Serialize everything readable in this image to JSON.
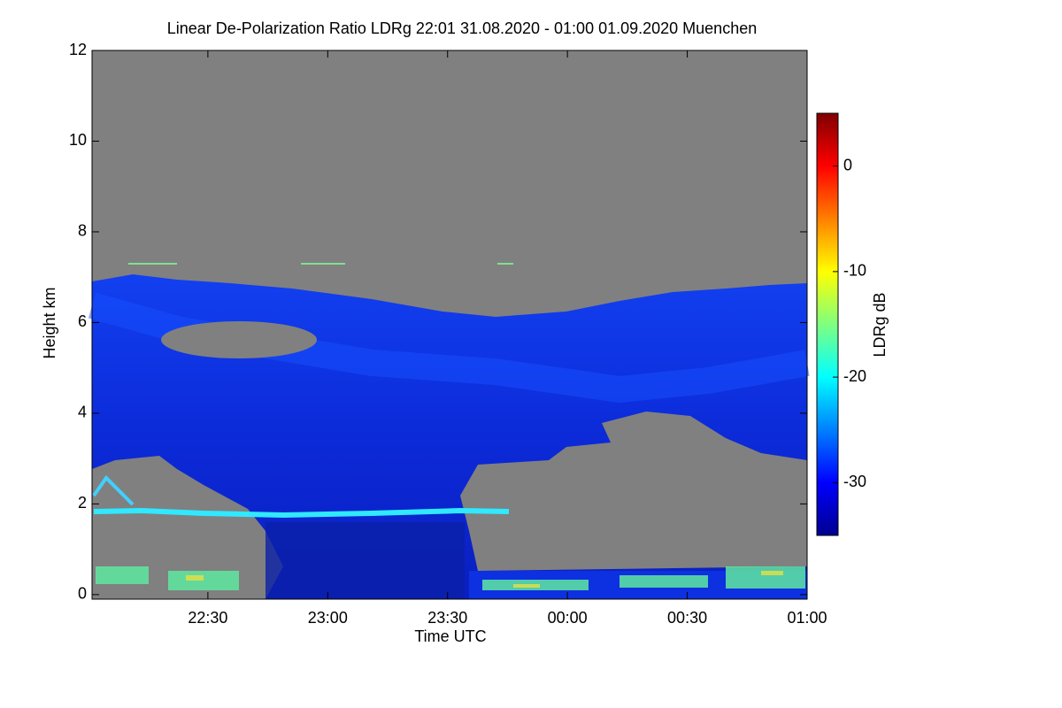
{
  "chart_data": {
    "type": "heatmap",
    "title": "Linear De-Polarization Ratio LDRg   22:01 31.08.2020 - 01:00 01.09.2020 Muenchen",
    "x_label": "Time UTC",
    "y_label": "Height km",
    "xlim": [
      22.0167,
      25.0
    ],
    "xticks": [
      {
        "value": 22.5,
        "label": "22:30"
      },
      {
        "value": 23,
        "label": "23:00"
      },
      {
        "value": 23.5,
        "label": "23:30"
      },
      {
        "value": 24,
        "label": "00:00"
      },
      {
        "value": 24.5,
        "label": "00:30"
      },
      {
        "value": 25,
        "label": "01:00"
      }
    ],
    "ylim": [
      -0.1,
      12
    ],
    "yticks": [
      0,
      2,
      4,
      6,
      8,
      10,
      12
    ],
    "colorbar": {
      "label": "LDRg dB",
      "lim": [
        -35,
        5
      ],
      "ticks": [
        0,
        -10,
        -20,
        -30
      ]
    }
  }
}
